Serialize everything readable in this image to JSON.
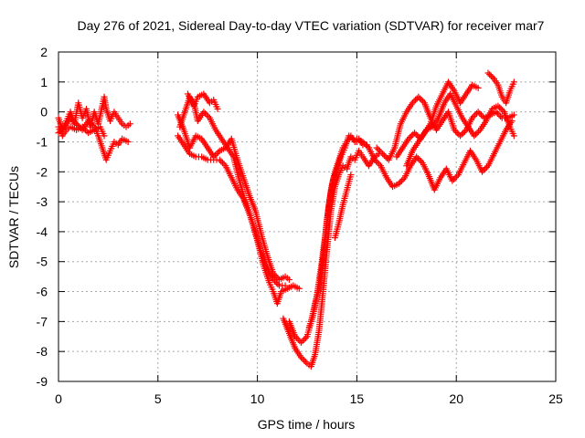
{
  "chart_data": {
    "type": "scatter",
    "title": "Day 276 of 2021, Sidereal Day-to-day VTEC variation (SDTVAR) for receiver mar7",
    "xlabel": "GPS time / hours",
    "ylabel": "SDTVAR / TECUs",
    "xlim": [
      0,
      25
    ],
    "ylim": [
      -9,
      2
    ],
    "xticks": [
      "0",
      "5",
      "10",
      "15",
      "20",
      "25"
    ],
    "yticks": [
      "-9",
      "-8",
      "-7",
      "-6",
      "-5",
      "-4",
      "-3",
      "-2",
      "-1",
      "0",
      "1",
      "2"
    ],
    "grid": true,
    "marker": "+",
    "color": "#ff0000",
    "segments": [
      [
        [
          0.0,
          -0.2
        ],
        [
          0.2,
          -0.6
        ],
        [
          0.4,
          -0.3
        ],
        [
          0.6,
          0.0
        ],
        [
          0.8,
          -0.4
        ],
        [
          1.0,
          0.3
        ],
        [
          1.2,
          -0.2
        ],
        [
          1.4,
          0.1
        ],
        [
          1.6,
          -0.5
        ],
        [
          1.8,
          0.0
        ],
        [
          2.0,
          -0.4
        ],
        [
          2.2,
          0.2
        ],
        [
          2.3,
          0.5
        ],
        [
          2.4,
          0.1
        ],
        [
          2.6,
          -0.3
        ],
        [
          2.8,
          0.0
        ],
        [
          3.0,
          -0.2
        ],
        [
          3.2,
          -0.4
        ],
        [
          3.4,
          -0.5
        ],
        [
          3.6,
          -0.4
        ]
      ],
      [
        [
          0.0,
          -0.7
        ],
        [
          0.3,
          -0.5
        ],
        [
          0.6,
          -0.2
        ],
        [
          0.9,
          -0.4
        ],
        [
          1.2,
          -0.6
        ],
        [
          1.5,
          -0.3
        ],
        [
          1.8,
          -0.5
        ],
        [
          2.0,
          -0.8
        ],
        [
          2.2,
          -1.2
        ],
        [
          2.4,
          -1.6
        ],
        [
          2.6,
          -1.3
        ],
        [
          2.8,
          -1.0
        ],
        [
          3.0,
          -1.1
        ],
        [
          3.2,
          -0.9
        ],
        [
          3.5,
          -1.0
        ]
      ],
      [
        [
          0.0,
          -0.5
        ],
        [
          0.2,
          -0.8
        ],
        [
          0.4,
          -0.6
        ],
        [
          0.6,
          -0.5
        ],
        [
          0.9,
          -0.6
        ],
        [
          1.2,
          -0.5
        ],
        [
          1.5,
          -0.7
        ],
        [
          1.8,
          -0.6
        ],
        [
          2.1,
          -0.5
        ],
        [
          2.3,
          -0.8
        ]
      ],
      [
        [
          6.0,
          -0.1
        ],
        [
          6.3,
          -0.6
        ],
        [
          6.6,
          -1.2
        ],
        [
          6.9,
          -0.8
        ],
        [
          7.2,
          -0.9
        ],
        [
          7.5,
          -1.2
        ],
        [
          7.8,
          -1.5
        ],
        [
          8.1,
          -1.3
        ],
        [
          8.4,
          -1.2
        ],
        [
          8.7,
          -0.9
        ],
        [
          9.0,
          -1.6
        ],
        [
          9.3,
          -2.2
        ],
        [
          9.6,
          -2.8
        ],
        [
          9.9,
          -3.3
        ],
        [
          10.2,
          -4.1
        ],
        [
          10.5,
          -4.8
        ],
        [
          10.8,
          -5.4
        ],
        [
          11.1,
          -5.6
        ],
        [
          11.4,
          -5.5
        ],
        [
          11.6,
          -5.6
        ]
      ],
      [
        [
          6.1,
          -0.5
        ],
        [
          6.4,
          0.1
        ],
        [
          6.6,
          0.5
        ],
        [
          6.8,
          0.3
        ],
        [
          7.0,
          -0.3
        ],
        [
          7.3,
          0.0
        ],
        [
          7.6,
          -0.2
        ],
        [
          7.9,
          -0.6
        ],
        [
          8.2,
          -0.9
        ],
        [
          8.5,
          -1.2
        ],
        [
          8.8,
          -1.5
        ],
        [
          9.1,
          -2.3
        ],
        [
          9.4,
          -3.0
        ],
        [
          9.7,
          -3.6
        ],
        [
          10.0,
          -4.3
        ],
        [
          10.3,
          -5.1
        ],
        [
          10.6,
          -5.7
        ],
        [
          10.8,
          -6.0
        ],
        [
          11.0,
          -6.4
        ],
        [
          11.2,
          -6.0
        ],
        [
          11.5,
          -5.9
        ],
        [
          11.8,
          -5.8
        ],
        [
          12.1,
          -5.9
        ]
      ],
      [
        [
          6.0,
          -0.8
        ],
        [
          6.3,
          -1.1
        ],
        [
          6.6,
          -1.4
        ],
        [
          6.9,
          -1.5
        ],
        [
          7.2,
          -1.5
        ],
        [
          7.5,
          -1.6
        ],
        [
          7.8,
          -1.6
        ],
        [
          8.1,
          -1.6
        ],
        [
          8.4,
          -1.8
        ],
        [
          8.7,
          -2.2
        ],
        [
          9.0,
          -2.6
        ],
        [
          9.3,
          -2.9
        ],
        [
          9.6,
          -3.4
        ],
        [
          9.9,
          -4.0
        ],
        [
          10.2,
          -4.7
        ],
        [
          10.5,
          -5.2
        ],
        [
          10.8,
          -5.6
        ],
        [
          11.1,
          -5.8
        ],
        [
          11.4,
          -5.8
        ]
      ],
      [
        [
          6.5,
          0.6
        ],
        [
          6.8,
          0.2
        ],
        [
          7.0,
          0.5
        ],
        [
          7.3,
          0.6
        ],
        [
          7.6,
          0.3
        ],
        [
          7.8,
          0.4
        ],
        [
          8.0,
          0.1
        ]
      ],
      [
        [
          11.3,
          -6.9
        ],
        [
          11.6,
          -7.4
        ],
        [
          11.9,
          -7.9
        ],
        [
          12.2,
          -8.2
        ],
        [
          12.5,
          -8.4
        ],
        [
          12.7,
          -8.5
        ],
        [
          12.9,
          -8.1
        ],
        [
          13.1,
          -7.3
        ],
        [
          13.3,
          -6.0
        ],
        [
          13.5,
          -4.6
        ],
        [
          13.7,
          -3.3
        ],
        [
          13.9,
          -2.5
        ],
        [
          14.1,
          -2.1
        ],
        [
          14.3,
          -1.8
        ],
        [
          14.5,
          -1.9
        ],
        [
          14.7,
          -1.5
        ],
        [
          14.9,
          -1.6
        ],
        [
          15.1,
          -1.3
        ],
        [
          15.3,
          -1.5
        ],
        [
          15.6,
          -1.8
        ],
        [
          15.9,
          -1.5
        ],
        [
          16.1,
          -1.4
        ]
      ],
      [
        [
          11.6,
          -7.0
        ],
        [
          11.9,
          -7.5
        ],
        [
          12.2,
          -7.7
        ],
        [
          12.5,
          -7.5
        ],
        [
          12.7,
          -7.0
        ],
        [
          12.9,
          -6.4
        ],
        [
          13.1,
          -5.9
        ],
        [
          13.3,
          -4.9
        ],
        [
          13.5,
          -3.6
        ],
        [
          13.7,
          -2.6
        ],
        [
          13.9,
          -2.0
        ],
        [
          14.1,
          -1.6
        ],
        [
          14.3,
          -1.2
        ],
        [
          14.5,
          -1.0
        ],
        [
          14.7,
          -0.8
        ],
        [
          14.9,
          -1.0
        ],
        [
          15.1,
          -0.9
        ],
        [
          15.3,
          -1.1
        ],
        [
          15.5,
          -1.1
        ]
      ],
      [
        [
          12.6,
          -7.2
        ],
        [
          12.8,
          -6.8
        ],
        [
          13.0,
          -6.1
        ],
        [
          13.2,
          -5.2
        ],
        [
          13.4,
          -4.2
        ],
        [
          13.6,
          -3.1
        ],
        [
          13.8,
          -2.3
        ],
        [
          14.0,
          -1.9
        ],
        [
          14.2,
          -1.5
        ],
        [
          14.4,
          -1.2
        ],
        [
          14.6,
          -0.8
        ],
        [
          14.8,
          -0.9
        ],
        [
          15.0,
          -1.0
        ]
      ],
      [
        [
          13.9,
          -4.2
        ],
        [
          14.1,
          -3.7
        ],
        [
          14.3,
          -3.1
        ],
        [
          14.5,
          -2.6
        ],
        [
          14.7,
          -2.1
        ]
      ],
      [
        [
          15.0,
          -0.9
        ],
        [
          15.3,
          -1.0
        ],
        [
          15.6,
          -1.2
        ],
        [
          15.9,
          -1.6
        ],
        [
          16.2,
          -1.8
        ],
        [
          16.5,
          -2.2
        ],
        [
          16.8,
          -2.5
        ],
        [
          17.1,
          -2.4
        ],
        [
          17.4,
          -2.2
        ],
        [
          17.7,
          -1.8
        ],
        [
          18.0,
          -1.5
        ],
        [
          18.3,
          -1.7
        ],
        [
          18.6,
          -2.1
        ],
        [
          18.9,
          -2.6
        ],
        [
          19.2,
          -2.2
        ],
        [
          19.5,
          -1.9
        ],
        [
          19.8,
          -2.3
        ],
        [
          20.1,
          -2.1
        ],
        [
          20.4,
          -1.7
        ],
        [
          20.7,
          -1.3
        ],
        [
          21.0,
          -1.6
        ],
        [
          21.3,
          -2.0
        ],
        [
          21.6,
          -1.8
        ],
        [
          21.9,
          -1.4
        ],
        [
          22.2,
          -1.0
        ],
        [
          22.5,
          -0.6
        ],
        [
          22.8,
          -0.3
        ]
      ],
      [
        [
          16.0,
          -1.2
        ],
        [
          16.3,
          -1.4
        ],
        [
          16.6,
          -1.6
        ],
        [
          16.9,
          -1.2
        ],
        [
          17.2,
          -0.4
        ],
        [
          17.5,
          0.0
        ],
        [
          17.8,
          0.3
        ],
        [
          18.1,
          0.5
        ],
        [
          18.4,
          0.3
        ],
        [
          18.7,
          -0.2
        ],
        [
          19.0,
          -0.6
        ],
        [
          19.3,
          -0.3
        ],
        [
          19.6,
          0.0
        ],
        [
          19.9,
          -0.6
        ],
        [
          20.2,
          -0.8
        ],
        [
          20.5,
          -0.6
        ],
        [
          20.8,
          -0.2
        ],
        [
          21.1,
          0.0
        ],
        [
          21.4,
          -0.2
        ],
        [
          21.7,
          -0.1
        ],
        [
          22.0,
          0.0
        ],
        [
          22.3,
          -0.2
        ],
        [
          22.6,
          -0.2
        ],
        [
          22.9,
          -0.1
        ]
      ],
      [
        [
          17.0,
          -1.5
        ],
        [
          17.3,
          -1.2
        ],
        [
          17.6,
          -0.9
        ],
        [
          17.9,
          -0.7
        ],
        [
          18.2,
          -0.9
        ],
        [
          18.5,
          -0.6
        ],
        [
          18.8,
          -0.5
        ],
        [
          19.1,
          -0.2
        ],
        [
          19.4,
          0.3
        ],
        [
          19.7,
          0.6
        ],
        [
          20.0,
          0.2
        ],
        [
          20.3,
          -0.2
        ],
        [
          20.6,
          -0.5
        ],
        [
          20.9,
          -0.8
        ],
        [
          21.2,
          -0.6
        ],
        [
          21.5,
          -0.3
        ],
        [
          21.8,
          0.1
        ],
        [
          22.1,
          0.2
        ],
        [
          22.4,
          0.0
        ],
        [
          22.7,
          -0.5
        ],
        [
          22.9,
          -0.8
        ]
      ],
      [
        [
          17.5,
          -1.8
        ],
        [
          17.8,
          -1.3
        ],
        [
          18.1,
          -1.0
        ],
        [
          18.4,
          -0.7
        ],
        [
          18.7,
          -0.4
        ],
        [
          19.0,
          0.2
        ],
        [
          19.3,
          0.6
        ],
        [
          19.6,
          1.0
        ],
        [
          19.9,
          0.7
        ],
        [
          20.2,
          0.3
        ],
        [
          20.5,
          0.6
        ],
        [
          20.8,
          0.9
        ],
        [
          21.1,
          0.8
        ]
      ],
      [
        [
          21.6,
          1.3
        ],
        [
          21.9,
          1.1
        ],
        [
          22.1,
          0.9
        ],
        [
          22.3,
          0.5
        ],
        [
          22.5,
          0.3
        ],
        [
          22.7,
          0.7
        ],
        [
          22.9,
          1.0
        ]
      ]
    ]
  }
}
